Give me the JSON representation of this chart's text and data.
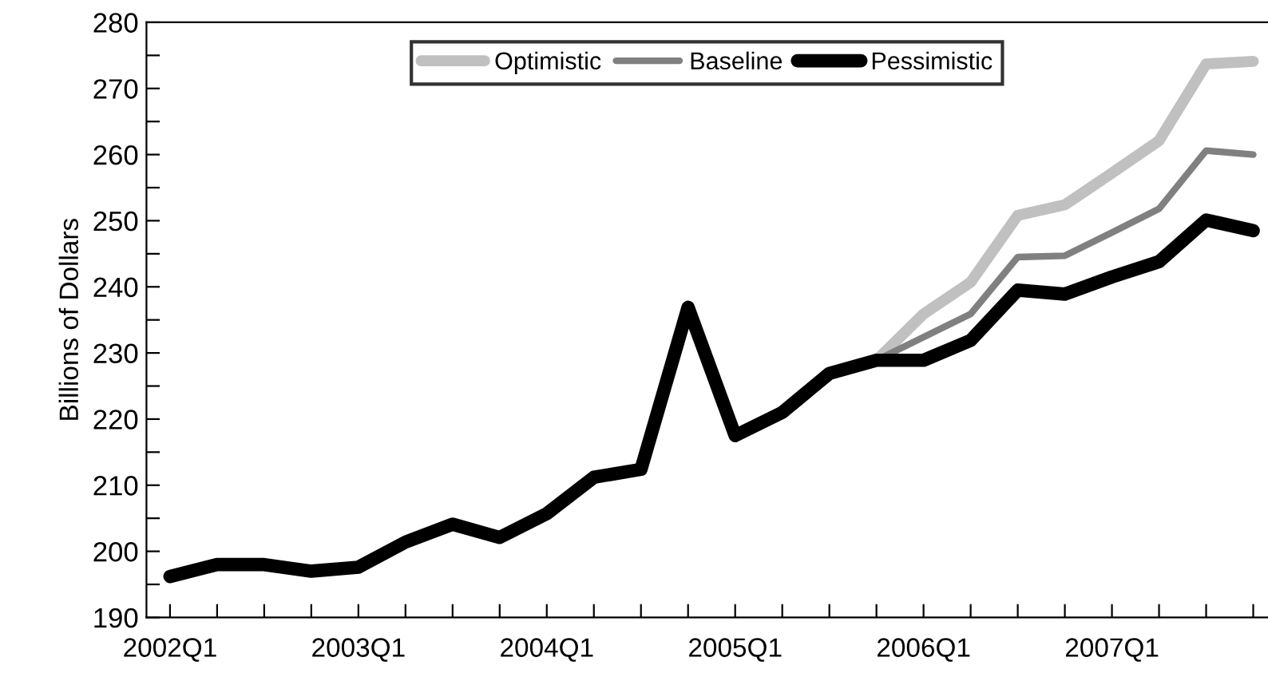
{
  "chart_data": {
    "type": "line",
    "ylabel": "Billions of Dollars",
    "categories": [
      "2002Q1",
      null,
      null,
      null,
      "2003Q1",
      null,
      null,
      null,
      "2004Q1",
      null,
      null,
      null,
      "2005Q1",
      null,
      null,
      null,
      "2006Q1",
      null,
      null,
      null,
      "2007Q1",
      null,
      null,
      null
    ],
    "ylim": [
      190,
      280
    ],
    "yticks": [
      190,
      {
        "value": 195,
        "label": null
      },
      200,
      {
        "value": 205,
        "label": null
      },
      210,
      {
        "value": 215,
        "label": null
      },
      220,
      {
        "value": 225,
        "label": null
      },
      230,
      {
        "value": 235,
        "label": null
      },
      240,
      {
        "value": 245,
        "label": null
      },
      250,
      {
        "value": 255,
        "label": null
      },
      260,
      {
        "value": 265,
        "label": null
      },
      270,
      {
        "value": 275,
        "label": null
      },
      280
    ],
    "grid": false,
    "legend": "top",
    "marker": "none",
    "line_style": "solid",
    "series": [
      {
        "name": "Optimistic",
        "color": "#c0c0c0",
        "values": [
          null,
          null,
          null,
          null,
          null,
          null,
          null,
          null,
          null,
          null,
          null,
          null,
          null,
          null,
          null,
          228.9,
          235.9,
          240.7,
          250.8,
          252.4,
          257.2,
          262.1,
          273.7,
          274.1
        ]
      },
      {
        "name": "Baseline",
        "color": "#808080",
        "values": [
          null,
          null,
          null,
          null,
          null,
          null,
          null,
          null,
          null,
          null,
          null,
          null,
          null,
          null,
          null,
          228.9,
          232.4,
          235.9,
          244.5,
          244.7,
          248.2,
          251.8,
          260.6,
          260.0
        ]
      },
      {
        "name": "Pessimistic",
        "color": "#000000",
        "values": [
          196.2,
          198.0,
          198.0,
          197.0,
          197.6,
          201.4,
          204.1,
          202.1,
          205.7,
          211.2,
          212.4,
          236.9,
          217.5,
          221.0,
          226.9,
          228.9,
          228.9,
          231.9,
          239.5,
          238.9,
          241.5,
          243.8,
          250.1,
          248.5
        ]
      }
    ]
  }
}
